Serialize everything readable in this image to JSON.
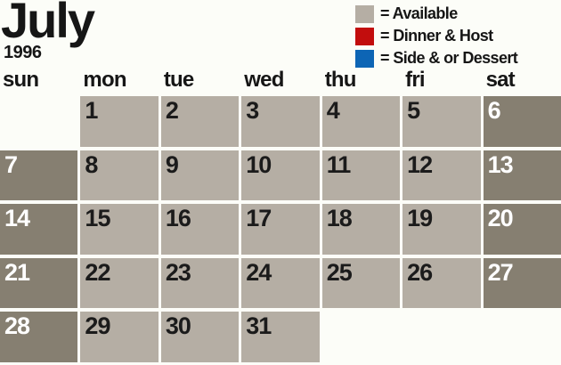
{
  "title": {
    "month": "July",
    "year": "1996"
  },
  "legend": {
    "items": [
      {
        "name": "available",
        "label": "= Available",
        "color": "#b5aea4"
      },
      {
        "name": "dinner-host",
        "label": "= Dinner & Host",
        "color": "#c20d0d"
      },
      {
        "name": "side-dessert",
        "label": "= Side & or Dessert",
        "color": "#0d65b5"
      }
    ]
  },
  "weekday_headers": [
    "sun",
    "mon",
    "tue",
    "wed",
    "thu",
    "fri",
    "sat"
  ],
  "calendar": {
    "weeks": [
      [
        null,
        1,
        2,
        3,
        4,
        5,
        6
      ],
      [
        7,
        8,
        9,
        10,
        11,
        12,
        13
      ],
      [
        14,
        15,
        16,
        17,
        18,
        19,
        20
      ],
      [
        21,
        22,
        23,
        24,
        25,
        26,
        27
      ],
      [
        28,
        29,
        30,
        31,
        null,
        null,
        null
      ]
    ],
    "all_days_status": "available"
  },
  "colors": {
    "background": "#fcfdf8",
    "cell_available_weekday": "#b5aea4",
    "cell_available_weekend": "#867f71",
    "day_number_weekday": "#1b1b1b",
    "day_number_weekend": "#ffffff",
    "legend_red": "#c20d0d",
    "legend_blue": "#0d65b5",
    "text": "#161616"
  }
}
